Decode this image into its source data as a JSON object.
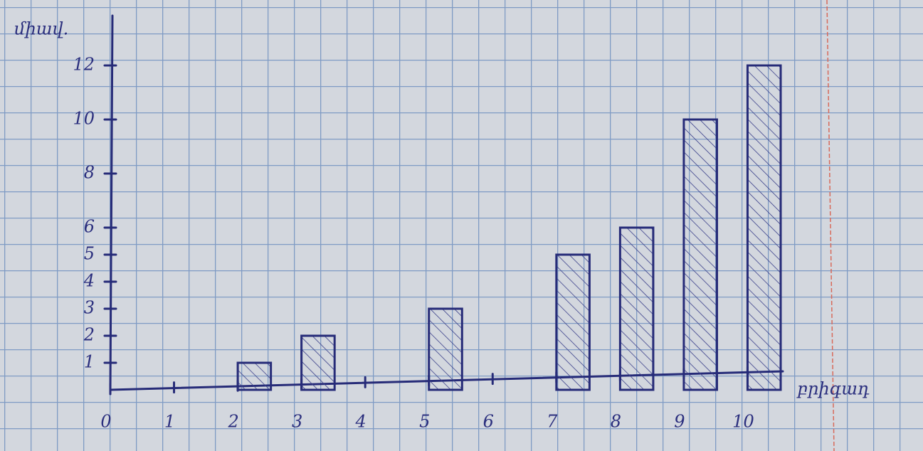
{
  "chart_data": {
    "type": "bar",
    "y_label": "միավ.",
    "x_label": "բրիգադ",
    "x": [
      2,
      3,
      5,
      7,
      8,
      9,
      10
    ],
    "values": [
      1,
      2,
      3,
      5,
      6,
      10,
      12
    ],
    "color": "#262b78",
    "xlim": [
      0,
      11
    ],
    "xticks": [
      0,
      1,
      2,
      3,
      4,
      5,
      6,
      7,
      8,
      9,
      10
    ],
    "ylim": [
      0,
      13
    ],
    "yticks": [
      1,
      2,
      3,
      4,
      5,
      6,
      8,
      10,
      12
    ]
  }
}
